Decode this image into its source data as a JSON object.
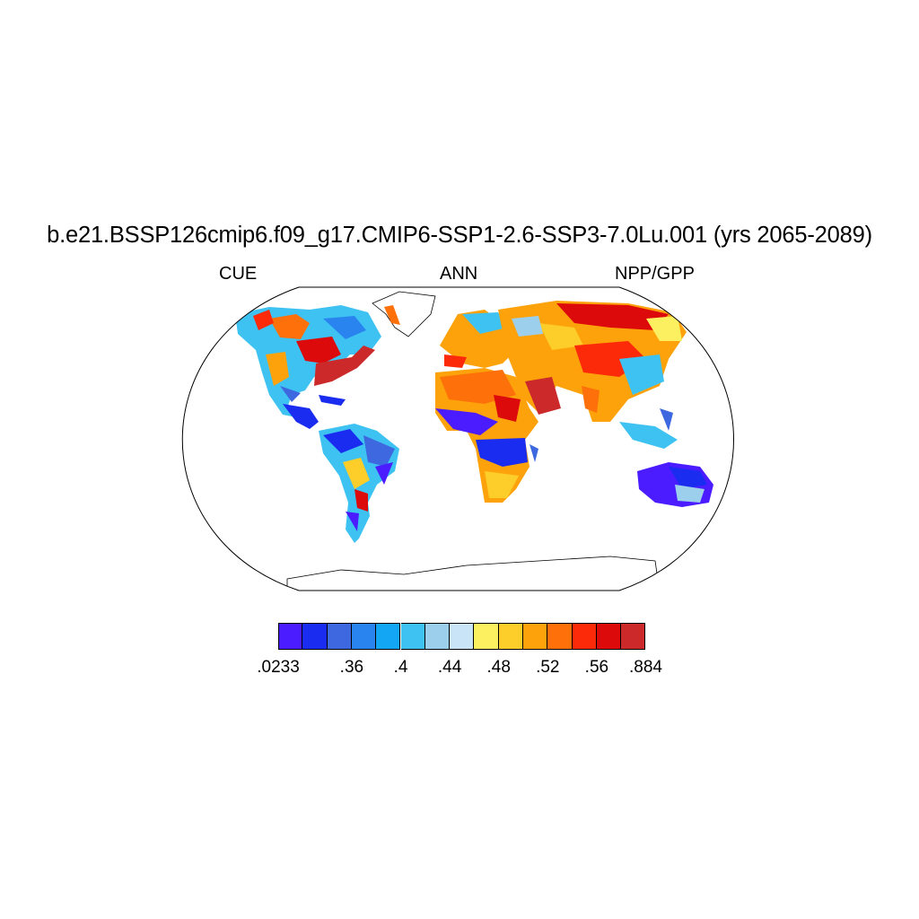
{
  "title": "b.e21.BSSP126cmip6.f09_g17.CMIP6-SSP1-2.6-SSP3-7.0Lu.001 (yrs 2065-2089)",
  "left_string": "CUE",
  "center_string": "ANN",
  "right_string": "NPP/GPP",
  "colorbar": {
    "colors": [
      "#4a1cff",
      "#1a2cf0",
      "#3d68e0",
      "#2a84ef",
      "#12a6f5",
      "#3ec2f2",
      "#9ccfec",
      "#c8e4f6",
      "#fdf060",
      "#fdcd2a",
      "#fda20a",
      "#fd700a",
      "#fd2a0a",
      "#dc0a0a",
      "#cc2a2a"
    ],
    "labels": [
      ".0233",
      ".36",
      ".4",
      ".44",
      ".48",
      ".52",
      ".56",
      ".884"
    ],
    "label_after_box": [
      0,
      2,
      4,
      6,
      8,
      10,
      12,
      14
    ]
  }
}
